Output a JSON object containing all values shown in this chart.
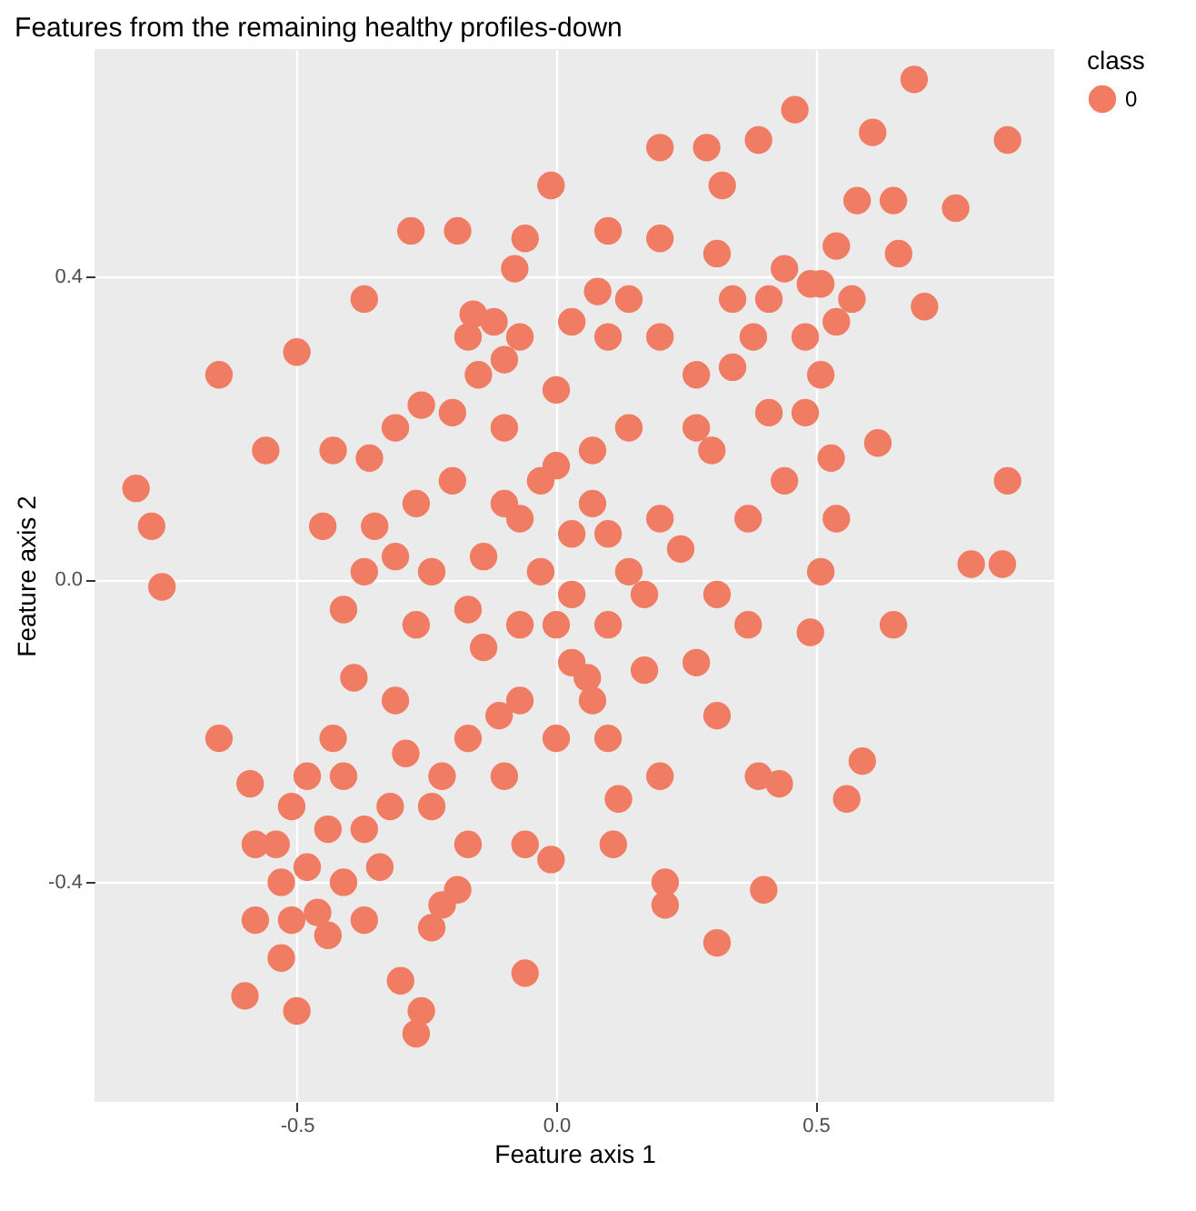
{
  "chart_data": {
    "type": "scatter",
    "title": "Features from the remaining healthy profiles-down",
    "xlabel": "Feature axis 1",
    "ylabel": "Feature axis 2",
    "legend_title": "class",
    "legend": "right",
    "grid": true,
    "marker": "circle",
    "xlim": [
      -0.89,
      0.96
    ],
    "ylim": [
      -0.69,
      0.7
    ],
    "xticks": [
      -0.5,
      {
        "value": 0,
        "label": "0.0"
      },
      0.5
    ],
    "yticks": [
      -0.4,
      {
        "value": 0,
        "label": "0.0"
      },
      0.4
    ],
    "series": [
      {
        "name": "0",
        "color": "#f07c63",
        "x": [
          -0.81,
          -0.78,
          -0.76,
          -0.65,
          -0.5,
          -0.45,
          -0.28,
          -0.01,
          0.32,
          0.46,
          0.69,
          0.87,
          0.87,
          0.8,
          0.86,
          0.59,
          0.65,
          0.62,
          0.57,
          0.77,
          0.71,
          0.58,
          0.29,
          0.39,
          0.2,
          0.1,
          -0.06,
          -0.19,
          -0.16,
          -0.37,
          -0.6,
          -0.5,
          -0.27,
          -0.26,
          -0.06,
          0.31,
          0.21,
          0.21,
          0.11,
          -0.01,
          0.12,
          0.49,
          0.56,
          0.51,
          0.39,
          0.43,
          0.4,
          0.53,
          0.51,
          0.49,
          0.34,
          0.48,
          0.65,
          0.61,
          0.66,
          0.54,
          -0.56,
          -0.43,
          -0.36,
          -0.27,
          -0.35,
          -0.26,
          -0.15,
          -0.12,
          -0.08,
          0.08,
          0.2,
          0.31,
          0.38,
          0.3,
          0.24,
          0.17,
          0.06,
          -0.11,
          -0.17,
          -0.22,
          -0.3,
          -0.54,
          -0.65,
          -0.59,
          -0.39,
          -0.43,
          -0.32,
          -0.53,
          -0.46,
          -0.37,
          -0.24,
          -0.19,
          -0.06,
          -0.07,
          0.0,
          0.07,
          -0.14,
          -0.03,
          0.03,
          0.1,
          -0.1,
          -0.2,
          -0.07,
          0.03,
          0.1,
          -0.17,
          -0.24,
          0.14,
          0.2,
          0.17,
          -0.27,
          -0.31,
          -0.07,
          0.0,
          0.1,
          0.27,
          0.31,
          0.37,
          0.27,
          0.2,
          0.1,
          0.0,
          -0.1,
          -0.2,
          -0.31,
          -0.37,
          -0.41,
          -0.51,
          -0.48,
          -0.44,
          -0.41,
          -0.53,
          -0.58,
          -0.37,
          -0.34,
          -0.41,
          -0.48,
          -0.29,
          -0.24,
          -0.51,
          -0.58,
          -0.44,
          0.41,
          0.48,
          0.54,
          0.34,
          0.27,
          0.41,
          0.44,
          0.51,
          0.54,
          0.44,
          0.37,
          0.31,
          0.2,
          -0.17,
          -0.22,
          -0.1,
          -0.07,
          0.03,
          0.14,
          -0.17,
          -0.31,
          -0.03,
          0.03,
          -0.1,
          0.07,
          0.14,
          -0.14,
          0.0,
          0.07
        ],
        "values": [
          0.12,
          0.07,
          -0.01,
          0.27,
          0.3,
          0.07,
          0.46,
          0.52,
          0.52,
          0.62,
          0.66,
          0.58,
          0.13,
          0.02,
          0.02,
          -0.24,
          -0.06,
          0.18,
          0.37,
          0.49,
          0.36,
          0.5,
          0.57,
          0.58,
          0.57,
          0.46,
          0.45,
          0.46,
          0.35,
          0.37,
          -0.55,
          -0.57,
          -0.6,
          -0.57,
          -0.52,
          -0.48,
          -0.43,
          -0.4,
          -0.35,
          -0.37,
          -0.29,
          -0.07,
          -0.29,
          0.01,
          -0.26,
          -0.27,
          -0.41,
          0.16,
          0.27,
          0.39,
          0.28,
          0.22,
          0.5,
          0.59,
          0.43,
          0.44,
          0.17,
          0.17,
          0.16,
          0.1,
          0.07,
          0.23,
          0.27,
          0.34,
          0.41,
          0.38,
          0.45,
          0.43,
          0.32,
          0.17,
          0.04,
          -0.12,
          -0.13,
          -0.18,
          -0.35,
          -0.43,
          -0.53,
          -0.35,
          -0.21,
          -0.27,
          -0.13,
          -0.21,
          -0.3,
          -0.5,
          -0.44,
          -0.45,
          -0.46,
          -0.41,
          -0.35,
          0.08,
          0.15,
          0.1,
          0.03,
          0.01,
          -0.02,
          0.06,
          0.2,
          0.13,
          -0.06,
          -0.11,
          -0.06,
          -0.04,
          0.01,
          0.2,
          0.08,
          -0.02,
          -0.06,
          -0.16,
          -0.16,
          -0.21,
          -0.21,
          -0.11,
          -0.02,
          0.08,
          0.2,
          0.32,
          0.32,
          0.25,
          0.29,
          0.22,
          0.03,
          0.01,
          -0.04,
          -0.3,
          -0.38,
          -0.33,
          -0.4,
          -0.4,
          -0.35,
          -0.33,
          -0.38,
          -0.26,
          -0.26,
          -0.23,
          -0.3,
          -0.45,
          -0.45,
          -0.47,
          0.22,
          0.32,
          0.34,
          0.37,
          0.27,
          0.37,
          0.41,
          0.39,
          0.08,
          0.13,
          -0.06,
          -0.18,
          -0.26,
          -0.21,
          -0.26,
          -0.26,
          0.32,
          0.34,
          0.37,
          0.32,
          0.2,
          0.13,
          0.06,
          0.1,
          0.17,
          0.01,
          -0.09,
          -0.06,
          -0.16
        ]
      }
    ]
  }
}
